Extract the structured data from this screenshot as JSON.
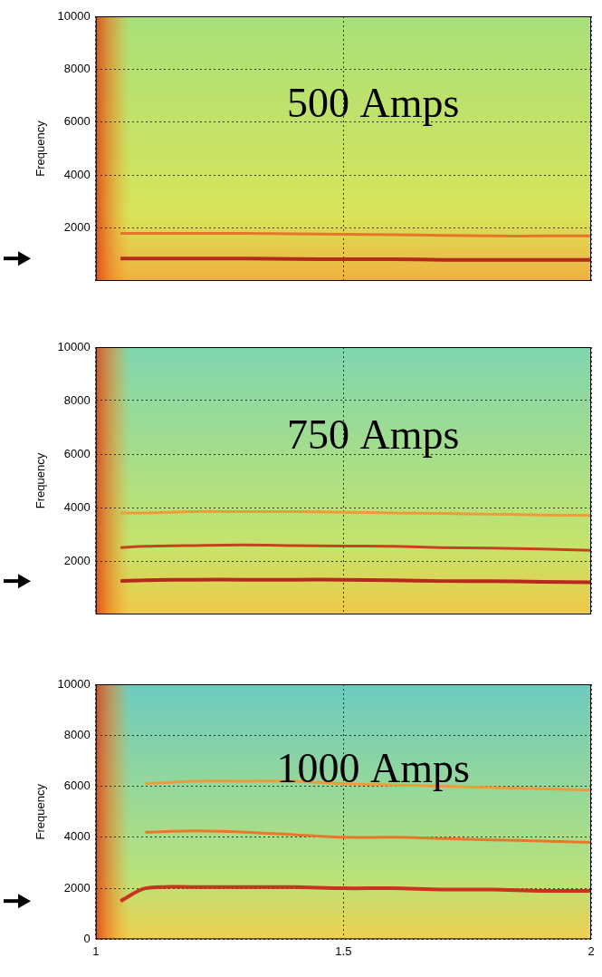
{
  "chart_data": [
    {
      "type": "line",
      "annotation": "500 Amps",
      "y_label": "Frequency",
      "x": [
        1.05,
        1.1,
        1.2,
        1.3,
        1.4,
        1.5,
        1.6,
        1.7,
        1.8,
        1.9,
        2
      ],
      "xlim": [
        1,
        2
      ],
      "xticks": [
        1,
        1.5,
        2
      ],
      "ylim": [
        0,
        10000
      ],
      "yticks": [
        2000,
        4000,
        6000,
        8000,
        10000
      ],
      "grid": true,
      "tick_labels": "y",
      "series": [
        {
          "color": "#b52a1c",
          "values": [
            850,
            850,
            850,
            850,
            830,
            820,
            820,
            800,
            800,
            800,
            800
          ]
        },
        {
          "color": "#e8742a",
          "values": [
            1800,
            1800,
            1800,
            1800,
            1780,
            1760,
            1750,
            1720,
            1700,
            1700,
            1700
          ]
        }
      ]
    },
    {
      "type": "line",
      "annotation": "750 Amps",
      "y_label": "Frequency",
      "x": [
        1.05,
        1.1,
        1.2,
        1.3,
        1.4,
        1.5,
        1.6,
        1.7,
        1.8,
        1.9,
        2
      ],
      "xlim": [
        1,
        2
      ],
      "xticks": [
        1,
        1.5,
        2
      ],
      "ylim": [
        0,
        10000
      ],
      "yticks": [
        2000,
        4000,
        6000,
        8000,
        10000
      ],
      "grid": true,
      "tick_labels": "y",
      "series": [
        {
          "color": "#b52a1c",
          "values": [
            1250,
            1280,
            1300,
            1300,
            1300,
            1300,
            1280,
            1250,
            1250,
            1220,
            1200
          ]
        },
        {
          "color": "#c8401e",
          "values": [
            2500,
            2550,
            2580,
            2600,
            2580,
            2560,
            2550,
            2500,
            2480,
            2450,
            2400
          ]
        },
        {
          "color": "#f09a3a",
          "values": [
            3800,
            3800,
            3850,
            3850,
            3850,
            3820,
            3800,
            3780,
            3750,
            3720,
            3700
          ]
        }
      ]
    },
    {
      "type": "line",
      "annotation": "1000 Amps",
      "y_label": "Frequency",
      "x": [
        1.05,
        1.1,
        1.2,
        1.3,
        1.4,
        1.5,
        1.6,
        1.7,
        1.8,
        1.9,
        2
      ],
      "xlim": [
        1,
        2
      ],
      "xticks": [
        1,
        1.5,
        2
      ],
      "ylim": [
        0,
        10000
      ],
      "yticks": [
        0,
        2000,
        4000,
        6000,
        8000,
        10000
      ],
      "grid": true,
      "tick_labels": true,
      "series": [
        {
          "color": "#c8321e",
          "values": [
            1500,
            2000,
            2050,
            2050,
            2050,
            2000,
            2000,
            1950,
            1950,
            1900,
            1900
          ]
        },
        {
          "color": "#e8782a",
          "values": [
            null,
            4200,
            4250,
            4200,
            4100,
            4000,
            4000,
            3950,
            3900,
            3850,
            3800
          ]
        },
        {
          "color": "#f09a3a",
          "values": [
            null,
            6100,
            6200,
            6200,
            6200,
            6100,
            6050,
            6000,
            5950,
            5900,
            5850
          ]
        }
      ]
    }
  ]
}
